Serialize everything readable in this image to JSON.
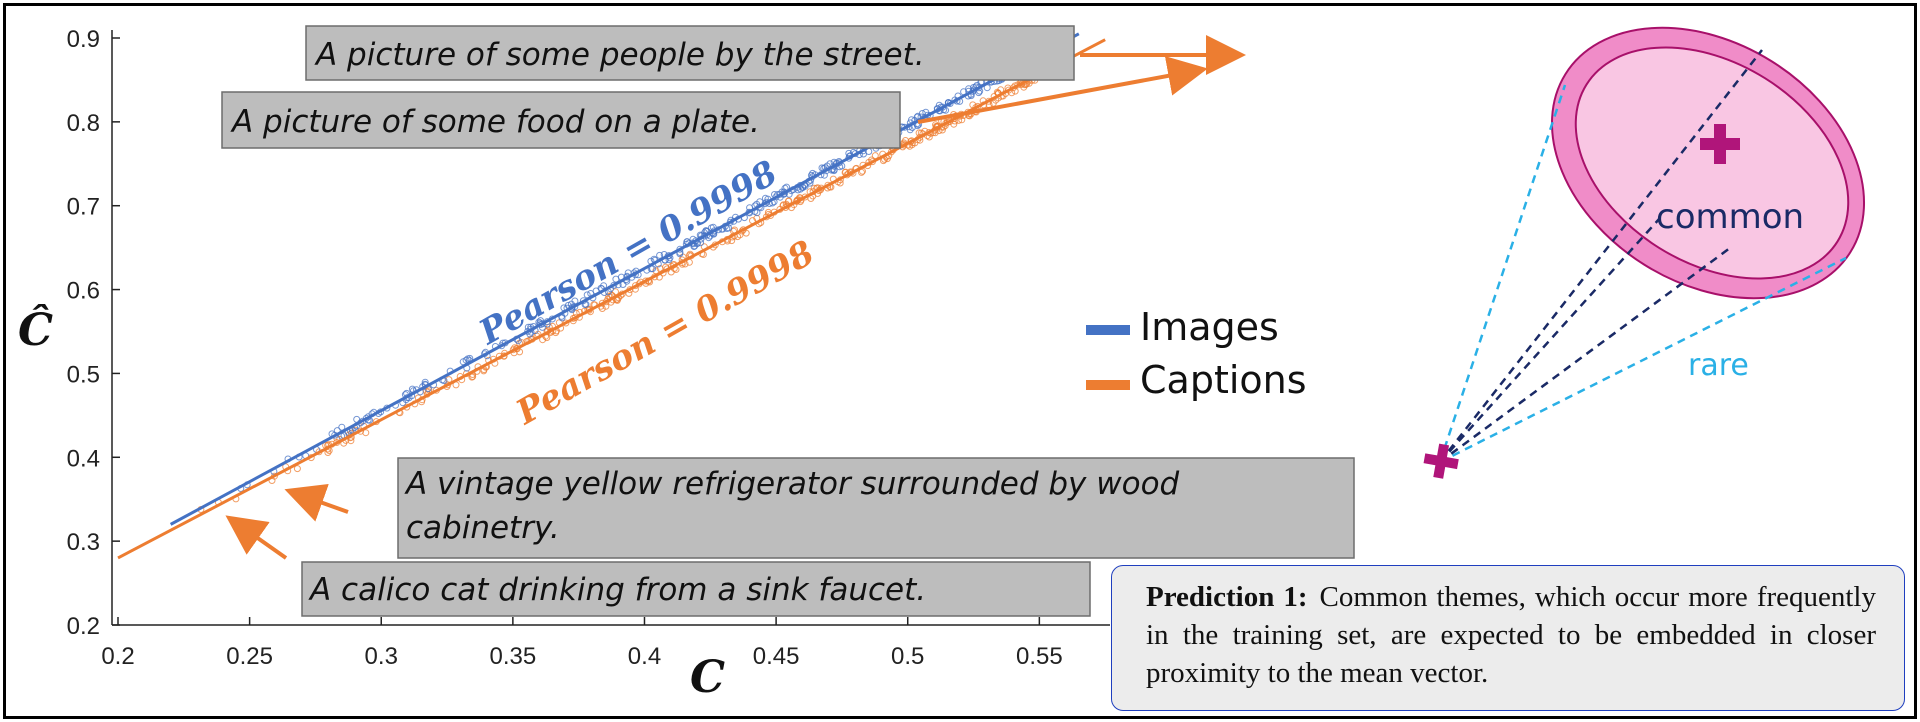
{
  "chart_data": {
    "type": "scatter",
    "xlabel": "C",
    "ylabel": "Ĉ",
    "xlim": [
      0.2,
      0.57
    ],
    "ylim": [
      0.2,
      0.9
    ],
    "x_ticks": [
      "0.2",
      "0.25",
      "0.3",
      "0.35",
      "0.4",
      "0.45",
      "0.5",
      "0.55"
    ],
    "y_ticks": [
      "0.2",
      "0.3",
      "0.4",
      "0.5",
      "0.6",
      "0.7",
      "0.8",
      "0.9"
    ],
    "legend": {
      "position": "center-right",
      "entries": [
        "Images",
        "Captions"
      ]
    },
    "series": [
      {
        "name": "Images",
        "color": "#4472c4",
        "fit": {
          "x": [
            0.22,
            0.565
          ],
          "y": [
            0.32,
            0.905
          ]
        },
        "pearson_label": "Pearson = 0.9998"
      },
      {
        "name": "Captions",
        "color": "#ed7d31",
        "fit": {
          "x": [
            0.2,
            0.575
          ],
          "y": [
            0.28,
            0.898
          ]
        },
        "pearson_label": "Pearson = 0.9998"
      }
    ]
  },
  "annotations": [
    {
      "text": "A picture of some people by the street."
    },
    {
      "text": "A picture of some food on a plate."
    },
    {
      "text": "A vintage yellow refrigerator surrounded by wood",
      "text2": "cabinetry."
    },
    {
      "text": "A calico cat drinking from a sink faucet."
    }
  ],
  "diagram": {
    "common_label": "common",
    "rare_label": "rare",
    "outer_color": "#f08cc8",
    "inner_color": "#f9c6e3",
    "marker_color": "#b0157a",
    "common_line_color": "#1a2a66",
    "rare_line_color": "#2ab0e6"
  },
  "prediction": {
    "title": "Prediction 1:",
    "text": "Common themes, which occur more frequently in the training set, are expected to be embedded in closer proximity to the mean vector."
  }
}
